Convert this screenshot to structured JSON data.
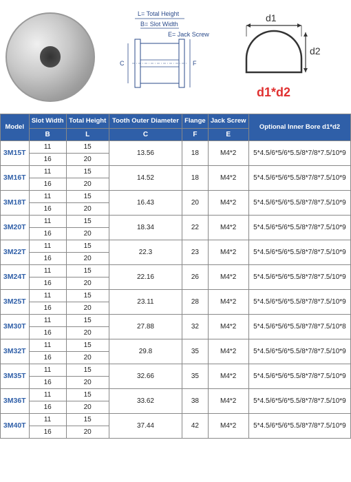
{
  "diagram_labels": {
    "L": "L= Total Height",
    "B": "B= Slot Width",
    "E": "E= Jack Screw",
    "C": "C",
    "F": "F"
  },
  "d_diagram": {
    "d1": "d1",
    "d2": "d2",
    "formula": "d1*d2",
    "stroke": "#333333",
    "formula_color": "#e03030"
  },
  "table": {
    "header_bg": "#2f5fa8",
    "header_fg": "#ffffff",
    "border_color": "#888888",
    "model_color": "#2f5fa8",
    "headers_row1": [
      "Model",
      "Slot Width",
      "Total Height",
      "Tooth Outer Diameter",
      "Flange",
      "Jack Screw",
      "Optional Inner Bore d1*d2"
    ],
    "headers_row2": [
      "B",
      "L",
      "C",
      "F",
      "E"
    ],
    "rows": [
      {
        "model": "3M15T",
        "b": [
          "11",
          "16"
        ],
        "l": [
          "15",
          "20"
        ],
        "c": "13.56",
        "f": "18",
        "e": "M4*2",
        "bore": "5*4.5/6*5/6*5.5/8*7/8*7.5/10*9"
      },
      {
        "model": "3M16T",
        "b": [
          "11",
          "16"
        ],
        "l": [
          "15",
          "20"
        ],
        "c": "14.52",
        "f": "18",
        "e": "M4*2",
        "bore": "5*4.5/6*5/6*5.5/8*7/8*7.5/10*9"
      },
      {
        "model": "3M18T",
        "b": [
          "11",
          "16"
        ],
        "l": [
          "15",
          "20"
        ],
        "c": "16.43",
        "f": "20",
        "e": "M4*2",
        "bore": "5*4.5/6*5/6*5.5/8*7/8*7.5/10*9"
      },
      {
        "model": "3M20T",
        "b": [
          "11",
          "16"
        ],
        "l": [
          "15",
          "20"
        ],
        "c": "18.34",
        "f": "22",
        "e": "M4*2",
        "bore": "5*4.5/6*5/6*5.5/8*7/8*7.5/10*9"
      },
      {
        "model": "3M22T",
        "b": [
          "11",
          "16"
        ],
        "l": [
          "15",
          "20"
        ],
        "c": "22.3",
        "f": "23",
        "e": "M4*2",
        "bore": "5*4.5/6*5/6*5.5/8*7/8*7.5/10*9"
      },
      {
        "model": "3M24T",
        "b": [
          "11",
          "16"
        ],
        "l": [
          "15",
          "20"
        ],
        "c": "22.16",
        "f": "26",
        "e": "M4*2",
        "bore": "5*4.5/6*5/6*5.5/8*7/8*7.5/10*9"
      },
      {
        "model": "3M25T",
        "b": [
          "11",
          "16"
        ],
        "l": [
          "15",
          "20"
        ],
        "c": "23.11",
        "f": "28",
        "e": "M4*2",
        "bore": "5*4.5/6*5/6*5.5/8*7/8*7.5/10*9"
      },
      {
        "model": "3M30T",
        "b": [
          "11",
          "16"
        ],
        "l": [
          "15",
          "20"
        ],
        "c": "27.88",
        "f": "32",
        "e": "M4*2",
        "bore": "5*4.5/6*5/6*5.5/8*7/8*7.5/10*8"
      },
      {
        "model": "3M32T",
        "b": [
          "11",
          "16"
        ],
        "l": [
          "15",
          "20"
        ],
        "c": "29.8",
        "f": "35",
        "e": "M4*2",
        "bore": "5*4.5/6*5/6*5.5/8*7/8*7.5/10*9"
      },
      {
        "model": "3M35T",
        "b": [
          "11",
          "16"
        ],
        "l": [
          "15",
          "20"
        ],
        "c": "32.66",
        "f": "35",
        "e": "M4*2",
        "bore": "5*4.5/6*5/6*5.5/8*7/8*7.5/10*9"
      },
      {
        "model": "3M36T",
        "b": [
          "11",
          "16"
        ],
        "l": [
          "15",
          "20"
        ],
        "c": "33.62",
        "f": "38",
        "e": "M4*2",
        "bore": "5*4.5/6*5/6*5.5/8*7/8*7.5/10*9"
      },
      {
        "model": "3M40T",
        "b": [
          "11",
          "16"
        ],
        "l": [
          "15",
          "20"
        ],
        "c": "37.44",
        "f": "42",
        "e": "M4*2",
        "bore": "5*4.5/6*5/6*5.5/8*7/8*7.5/10*9"
      }
    ]
  }
}
